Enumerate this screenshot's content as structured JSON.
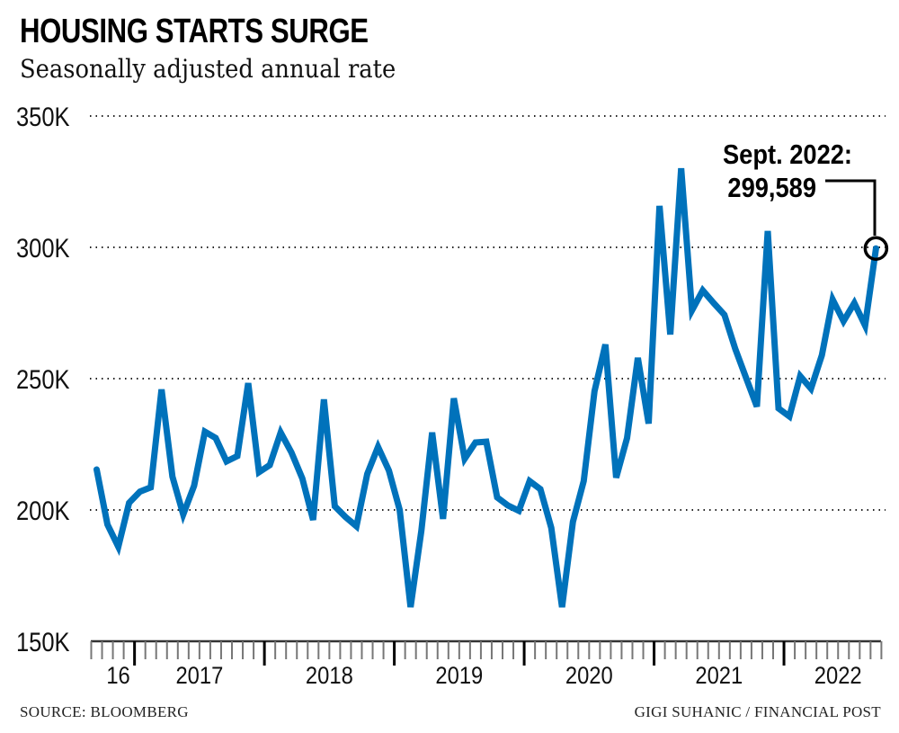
{
  "title": "HOUSING STARTS SURGE",
  "subtitle": "Seasonally adjusted annual rate",
  "source": "SOURCE: BLOOMBERG",
  "credit": "GIGI SUHANIC / FINANCIAL POST",
  "chart_data": {
    "type": "line",
    "title": "HOUSING STARTS SURGE",
    "subtitle": "Seasonally adjusted annual rate",
    "x_start": "2016-09",
    "x_end": "2022-09",
    "x_frequency": "monthly",
    "x_tick_labels": [
      "16",
      "2017",
      "2018",
      "2019",
      "2020",
      "2021",
      "2022"
    ],
    "y_tick_labels": [
      "150K",
      "200K",
      "250K",
      "300K",
      "350K"
    ],
    "y_ticks": [
      150000,
      200000,
      250000,
      300000,
      350000
    ],
    "ylim": [
      150000,
      350000
    ],
    "grid": "horizontal dotted",
    "line_color": "#0072bb",
    "series": [
      {
        "values": [
          215400,
          194500,
          186000,
          202700,
          207000,
          208600,
          245900,
          212700,
          198300,
          209200,
          229800,
          227400,
          218500,
          220500,
          248300,
          214400,
          217100,
          229500,
          221900,
          212000,
          196200,
          242100,
          201400,
          197300,
          193800,
          213700,
          224000,
          215000,
          200000,
          163000,
          192100,
          229500,
          196600,
          242500,
          219500,
          225700,
          226000,
          204800,
          201700,
          199700,
          211000,
          207900,
          193200,
          163000,
          195500,
          211000,
          245200,
          263000,
          212300,
          227400,
          257900,
          232900,
          315800,
          266800,
          330100,
          276000,
          283600,
          278800,
          274300,
          261300,
          250300,
          239400,
          306200,
          238700,
          235600,
          251000,
          246200,
          258900,
          280100,
          271900,
          278800,
          270200,
          299589
        ]
      }
    ],
    "annotation": {
      "line1": "Sept. 2022:",
      "line2": "299,589"
    }
  }
}
